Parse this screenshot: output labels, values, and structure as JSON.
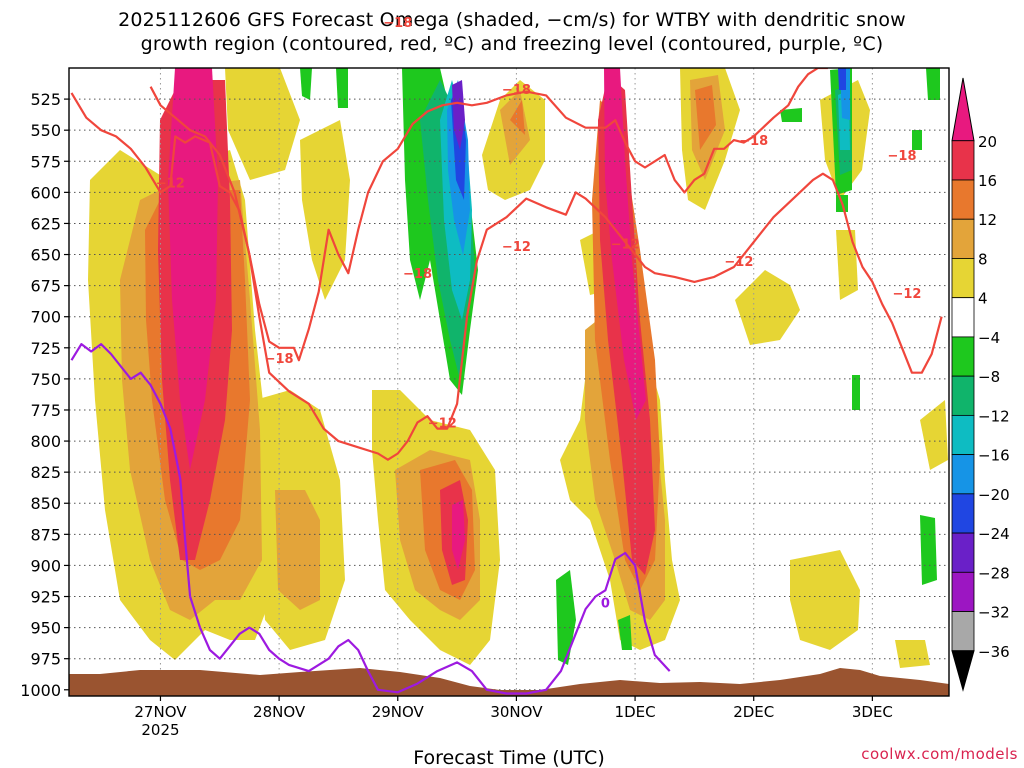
{
  "chart_data": {
    "type": "heatmap",
    "title_line1": "2025112606 GFS Forecast Omega (shaded, −cm/s) for WTBY with dendritic snow",
    "title_line2": "growth region (contoured, red, ºC) and freezing level (contoured, purple, ºC)",
    "xlabel": "Forecast Time (UTC)",
    "ylabel": "",
    "x_range_hours": [
      -18.5,
      159.5
    ],
    "x_ticks": [
      {
        "hour": 0,
        "label": "27NOV",
        "sublabel": "2025"
      },
      {
        "hour": 24,
        "label": "28NOV",
        "sublabel": ""
      },
      {
        "hour": 48,
        "label": "29NOV",
        "sublabel": ""
      },
      {
        "hour": 72,
        "label": "30NOV",
        "sublabel": ""
      },
      {
        "hour": 96,
        "label": "1DEC",
        "sublabel": ""
      },
      {
        "hour": 120,
        "label": "2DEC",
        "sublabel": ""
      },
      {
        "hour": 144,
        "label": "3DEC",
        "sublabel": ""
      }
    ],
    "y_range_hpa": [
      1005,
      500
    ],
    "y_ticks": [
      525,
      550,
      575,
      600,
      625,
      650,
      675,
      700,
      725,
      750,
      775,
      800,
      825,
      850,
      875,
      900,
      925,
      950,
      975,
      1000
    ],
    "colorbar": {
      "labels": [
        "20",
        "16",
        "12",
        "8",
        "4",
        "−4",
        "−8",
        "−12",
        "−16",
        "−20",
        "−24",
        "−28",
        "−32",
        "−36"
      ],
      "bins": [
        {
          "range": ">20",
          "color": "#e8197f"
        },
        {
          "range": "16 to 20",
          "color": "#e8334a"
        },
        {
          "range": "12 to 16",
          "color": "#e8782d"
        },
        {
          "range": "8 to 12",
          "color": "#e3a43a"
        },
        {
          "range": "4 to 8",
          "color": "#e6d534"
        },
        {
          "range": "-4 to 4",
          "color": "#ffffff"
        },
        {
          "range": "-8 to -4",
          "color": "#1ec81e"
        },
        {
          "range": "-12 to -8",
          "color": "#10b46b"
        },
        {
          "range": "-16 to -12",
          "color": "#0ebcc2"
        },
        {
          "range": "-20 to -16",
          "color": "#1694e6"
        },
        {
          "range": "-24 to -20",
          "color": "#2046e2"
        },
        {
          "range": "-28 to -24",
          "color": "#6a20c8"
        },
        {
          "range": "-32 to -28",
          "color": "#9c16c2"
        },
        {
          "range": "-36 to -32",
          "color": "#a8a8a8"
        },
        {
          "range": "<-36",
          "color": "#000000"
        }
      ]
    },
    "contour_labels": [
      {
        "text": "−12",
        "hour": 2,
        "hpa": 592
      },
      {
        "text": "−18",
        "hour": 48,
        "hpa": 463
      },
      {
        "text": "−18",
        "hour": 72,
        "hpa": 517
      },
      {
        "text": "−18",
        "hour": 120,
        "hpa": 558
      },
      {
        "text": "−18",
        "hour": 150,
        "hpa": 570
      },
      {
        "text": "−12",
        "hour": 94,
        "hpa": 641
      },
      {
        "text": "−12",
        "hour": 117,
        "hpa": 655
      },
      {
        "text": "−12",
        "hour": 151,
        "hpa": 681
      },
      {
        "text": "−18",
        "hour": 52,
        "hpa": 665
      },
      {
        "text": "−18",
        "hour": 24,
        "hpa": 733
      },
      {
        "text": "−12",
        "hour": 57,
        "hpa": 785
      },
      {
        "text": "−12",
        "hour": 72,
        "hpa": 643
      },
      {
        "text": "0",
        "hour": 90,
        "hpa": 930
      }
    ],
    "series": [
      {
        "name": "Dendritic growth region -12°C (upper)",
        "color": "#f0463c",
        "points": [
          [
            -18,
            520
          ],
          [
            -15,
            540
          ],
          [
            -12,
            550
          ],
          [
            -9,
            555
          ],
          [
            -6,
            565
          ],
          [
            -3,
            580
          ],
          [
            0,
            600
          ],
          [
            2,
            595
          ],
          [
            3,
            555
          ],
          [
            5,
            560
          ],
          [
            7,
            555
          ],
          [
            10,
            560
          ],
          [
            12,
            595
          ],
          [
            14,
            600
          ],
          [
            16,
            615
          ],
          [
            18,
            650
          ],
          [
            20,
            690
          ],
          [
            22,
            720
          ],
          [
            24,
            725
          ],
          [
            27,
            725
          ],
          [
            28,
            735
          ],
          [
            30,
            710
          ],
          [
            32,
            680
          ],
          [
            34,
            630
          ],
          [
            36,
            650
          ],
          [
            38,
            665
          ],
          [
            40,
            630
          ],
          [
            42,
            600
          ],
          [
            45,
            575
          ],
          [
            48,
            565
          ],
          [
            51,
            545
          ],
          [
            54,
            535
          ],
          [
            57,
            530
          ],
          [
            60,
            528
          ],
          [
            63,
            530
          ],
          [
            66,
            528
          ],
          [
            70,
            522
          ],
          [
            74,
            519
          ],
          [
            78,
            522
          ],
          [
            82,
            540
          ],
          [
            86,
            548
          ],
          [
            90,
            548
          ],
          [
            92,
            542
          ],
          [
            94,
            560
          ],
          [
            96,
            575
          ],
          [
            98,
            580
          ],
          [
            100,
            575
          ],
          [
            102,
            570
          ],
          [
            104,
            590
          ],
          [
            106,
            600
          ],
          [
            108,
            590
          ],
          [
            110,
            585
          ],
          [
            112,
            565
          ],
          [
            114,
            565
          ],
          [
            116,
            558
          ],
          [
            118,
            560
          ],
          [
            120,
            555
          ],
          [
            124,
            540
          ],
          [
            127,
            530
          ],
          [
            129,
            515
          ],
          [
            131,
            505
          ],
          [
            133,
            500
          ],
          [
            135,
            500
          ]
        ]
      },
      {
        "name": "Dendritic growth region -18°C (lower)",
        "color": "#f0463c",
        "points": [
          [
            -2,
            515
          ],
          [
            0,
            530
          ],
          [
            3,
            540
          ],
          [
            6,
            550
          ],
          [
            9,
            555
          ],
          [
            12,
            570
          ],
          [
            15,
            600
          ],
          [
            18,
            650
          ],
          [
            20,
            700
          ],
          [
            22,
            745
          ],
          [
            26,
            760
          ],
          [
            30,
            770
          ],
          [
            33,
            790
          ],
          [
            36,
            800
          ],
          [
            40,
            805
          ],
          [
            44,
            810
          ],
          [
            46,
            815
          ],
          [
            48,
            810
          ],
          [
            50,
            800
          ],
          [
            52,
            785
          ],
          [
            54,
            780
          ],
          [
            56,
            790
          ],
          [
            58,
            790
          ],
          [
            60,
            770
          ],
          [
            62,
            700
          ],
          [
            64,
            655
          ],
          [
            66,
            630
          ],
          [
            70,
            620
          ],
          [
            74,
            605
          ],
          [
            78,
            612
          ],
          [
            82,
            618
          ],
          [
            84,
            600
          ],
          [
            86,
            605
          ],
          [
            90,
            620
          ],
          [
            94,
            640
          ],
          [
            96,
            650
          ],
          [
            98,
            660
          ],
          [
            100,
            665
          ],
          [
            104,
            668
          ],
          [
            108,
            672
          ],
          [
            112,
            668
          ],
          [
            116,
            660
          ],
          [
            120,
            640
          ],
          [
            124,
            620
          ],
          [
            128,
            605
          ],
          [
            132,
            590
          ],
          [
            134,
            585
          ],
          [
            136,
            590
          ],
          [
            138,
            610
          ],
          [
            140,
            640
          ],
          [
            142,
            660
          ],
          [
            144,
            672
          ],
          [
            146,
            690
          ],
          [
            148,
            705
          ],
          [
            150,
            725
          ],
          [
            152,
            745
          ],
          [
            154,
            745
          ],
          [
            156,
            730
          ],
          [
            158,
            700
          ]
        ]
      },
      {
        "name": "Freezing level 0°C",
        "color": "#9d1ae0",
        "points": [
          [
            -18,
            735
          ],
          [
            -16,
            722
          ],
          [
            -14,
            728
          ],
          [
            -12,
            722
          ],
          [
            -10,
            730
          ],
          [
            -8,
            740
          ],
          [
            -6,
            750
          ],
          [
            -4,
            745
          ],
          [
            -2,
            755
          ],
          [
            0,
            770
          ],
          [
            2,
            790
          ],
          [
            4,
            830
          ],
          [
            5,
            880
          ],
          [
            6,
            925
          ],
          [
            8,
            950
          ],
          [
            10,
            968
          ],
          [
            12,
            975
          ],
          [
            14,
            965
          ],
          [
            16,
            955
          ],
          [
            18,
            950
          ],
          [
            20,
            955
          ],
          [
            22,
            968
          ],
          [
            24,
            975
          ],
          [
            26,
            980
          ],
          [
            30,
            985
          ],
          [
            34,
            975
          ],
          [
            36,
            965
          ],
          [
            38,
            960
          ],
          [
            40,
            968
          ],
          [
            42,
            985
          ],
          [
            44,
            1000
          ],
          [
            48,
            1002
          ],
          [
            52,
            995
          ],
          [
            56,
            985
          ],
          [
            60,
            978
          ],
          [
            63,
            985
          ],
          [
            66,
            1000
          ],
          [
            70,
            1003
          ],
          [
            74,
            1003
          ],
          [
            78,
            1000
          ],
          [
            81,
            985
          ],
          [
            84,
            955
          ],
          [
            86,
            935
          ],
          [
            88,
            925
          ],
          [
            90,
            920
          ],
          [
            92,
            895
          ],
          [
            94,
            890
          ],
          [
            96,
            900
          ],
          [
            98,
            945
          ],
          [
            100,
            972
          ],
          [
            103,
            985
          ]
        ]
      }
    ],
    "credit": "coolwx.com/models"
  }
}
